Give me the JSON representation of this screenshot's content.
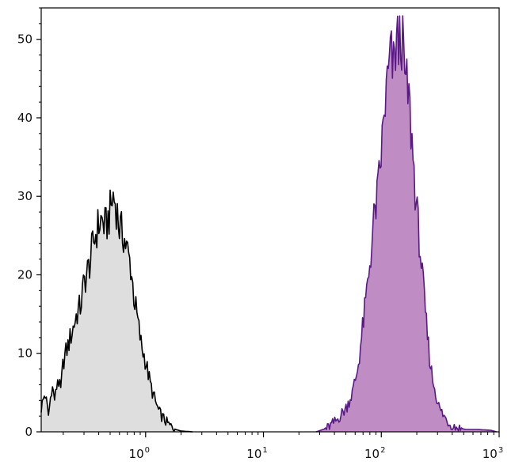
{
  "chart_data": {
    "type": "area",
    "title": "",
    "xlabel": "",
    "ylabel": "",
    "x_scale": "log",
    "xlim": [
      0.13,
      1000
    ],
    "ylim": [
      0,
      54
    ],
    "x_ticks": [
      {
        "value": 1,
        "base": "10",
        "exp": "0"
      },
      {
        "value": 10,
        "base": "10",
        "exp": "1"
      },
      {
        "value": 100,
        "base": "10",
        "exp": "2"
      },
      {
        "value": 1000,
        "base": "10",
        "exp": "3"
      }
    ],
    "y_ticks": [
      0,
      10,
      20,
      30,
      40,
      50
    ],
    "grid": false,
    "legend": "none",
    "series": [
      {
        "fill": "#dedede",
        "stroke": "#000000",
        "points": [
          [
            0.13,
            3
          ],
          [
            0.14,
            5
          ],
          [
            0.15,
            2
          ],
          [
            0.16,
            6
          ],
          [
            0.17,
            4
          ],
          [
            0.18,
            7
          ],
          [
            0.19,
            5
          ],
          [
            0.2,
            9
          ],
          [
            0.22,
            11
          ],
          [
            0.24,
            13
          ],
          [
            0.26,
            15
          ],
          [
            0.28,
            16
          ],
          [
            0.3,
            19
          ],
          [
            0.33,
            21
          ],
          [
            0.36,
            24
          ],
          [
            0.39,
            26
          ],
          [
            0.42,
            27
          ],
          [
            0.46,
            26
          ],
          [
            0.5,
            28
          ],
          [
            0.53,
            30
          ],
          [
            0.56,
            29
          ],
          [
            0.6,
            26
          ],
          [
            0.65,
            25
          ],
          [
            0.7,
            23
          ],
          [
            0.75,
            21
          ],
          [
            0.8,
            17
          ],
          [
            0.86,
            14
          ],
          [
            0.92,
            11
          ],
          [
            1.0,
            9
          ],
          [
            1.1,
            6
          ],
          [
            1.2,
            4
          ],
          [
            1.3,
            2.5
          ],
          [
            1.45,
            1.5
          ],
          [
            1.6,
            0.8
          ],
          [
            1.8,
            0.3
          ],
          [
            2.0,
            0.1
          ],
          [
            2.5,
            0
          ]
        ]
      },
      {
        "fill": "#bf8cc4",
        "stroke": "#5a1a86",
        "points": [
          [
            28,
            0
          ],
          [
            35,
            0.5
          ],
          [
            42,
            1.5
          ],
          [
            50,
            3
          ],
          [
            57,
            5
          ],
          [
            63,
            8
          ],
          [
            68,
            12
          ],
          [
            73,
            16
          ],
          [
            78,
            20
          ],
          [
            83,
            24
          ],
          [
            88,
            28
          ],
          [
            93,
            30
          ],
          [
            98,
            34
          ],
          [
            103,
            38
          ],
          [
            108,
            42
          ],
          [
            114,
            45
          ],
          [
            120,
            48
          ],
          [
            127,
            46
          ],
          [
            134,
            50
          ],
          [
            141,
            49
          ],
          [
            148,
            51
          ],
          [
            155,
            47
          ],
          [
            162,
            44
          ],
          [
            170,
            43
          ],
          [
            180,
            38
          ],
          [
            190,
            33
          ],
          [
            200,
            28
          ],
          [
            212,
            24
          ],
          [
            225,
            19
          ],
          [
            240,
            14
          ],
          [
            255,
            10
          ],
          [
            270,
            7
          ],
          [
            290,
            5
          ],
          [
            310,
            3
          ],
          [
            340,
            2
          ],
          [
            380,
            1
          ],
          [
            430,
            0.6
          ],
          [
            520,
            0.3
          ],
          [
            650,
            0.3
          ],
          [
            850,
            0.2
          ],
          [
            950,
            0
          ]
        ]
      }
    ]
  }
}
